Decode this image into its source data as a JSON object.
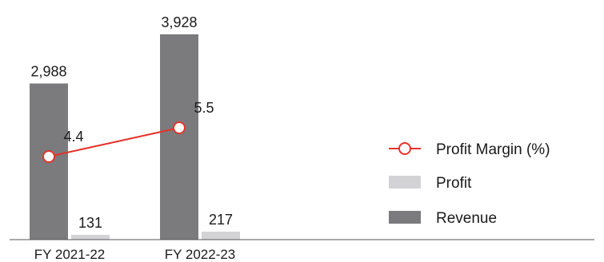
{
  "chart_data": {
    "type": "bar",
    "categories": [
      "FY 2021-22",
      "FY 2022-23"
    ],
    "series": [
      {
        "name": "Revenue",
        "kind": "bar",
        "values": [
          2988,
          3928
        ],
        "labels": [
          "2,988",
          "3,928"
        ],
        "color": "#7b7b7d"
      },
      {
        "name": "Profit",
        "kind": "bar",
        "values": [
          131,
          217
        ],
        "labels": [
          "131",
          "217"
        ],
        "color": "#d3d3d5"
      },
      {
        "name": "Profit Margin (%)",
        "kind": "line",
        "values": [
          4.4,
          5.5
        ],
        "labels": [
          "4.4",
          "5.5"
        ],
        "color": "#e5332a"
      }
    ],
    "legend_position": "right",
    "grid": false
  }
}
